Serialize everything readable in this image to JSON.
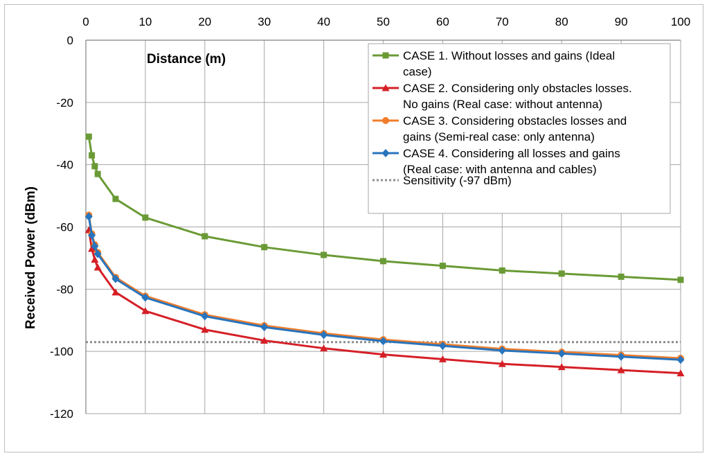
{
  "chart_data": {
    "type": "line",
    "xlabel": "Distance (m)",
    "ylabel": "Received Power (dBm)",
    "xlim": [
      0,
      100
    ],
    "ylim": [
      -120,
      0
    ],
    "xticks": [
      0,
      10,
      20,
      30,
      40,
      50,
      60,
      70,
      80,
      90,
      100
    ],
    "yticks": [
      0,
      -20,
      -40,
      -60,
      -80,
      -100,
      -120
    ],
    "grid": true,
    "legend_position": "top-right",
    "x": [
      0.5,
      1,
      1.5,
      2,
      5,
      10,
      20,
      30,
      40,
      50,
      60,
      70,
      80,
      90,
      100
    ],
    "series": [
      {
        "name": "CASE 1. Without losses and gains (Ideal case)",
        "legend_lines": [
          "CASE 1. Without losses and gains (Ideal",
          "case)"
        ],
        "color": "#6a9a35",
        "marker": "square",
        "values": [
          -31,
          -37,
          -40.5,
          -43,
          -51,
          -57,
          -63,
          -66.5,
          -69,
          -71,
          -72.5,
          -74,
          -75,
          -76,
          -77
        ]
      },
      {
        "name": "CASE 2. Considering only obstacles losses. No gains (Real case: without antenna)",
        "legend_lines": [
          "CASE 2. Considering only obstacles losses.",
          "No gains (Real case: without antenna)"
        ],
        "color": "#d51f26",
        "marker": "triangle",
        "values": [
          -61,
          -67,
          -70.5,
          -73,
          -81,
          -87,
          -93,
          -96.5,
          -99,
          -101,
          -102.5,
          -104,
          -105,
          -106,
          -107
        ]
      },
      {
        "name": "CASE 3. Considering obstacles losses and gains (Semi-real case: only antenna)",
        "legend_lines": [
          "CASE 3. Considering obstacles losses and",
          "gains (Semi-real case: only antenna)"
        ],
        "color": "#f07d2a",
        "marker": "circle",
        "values": [
          -56.2,
          -62.2,
          -65.7,
          -68.2,
          -76.2,
          -82.2,
          -88.2,
          -91.7,
          -94.2,
          -96.2,
          -97.7,
          -99.2,
          -100.2,
          -101.2,
          -102.2
        ]
      },
      {
        "name": "CASE 4. Considering all losses and gains (Real case: with antenna and cables)",
        "legend_lines": [
          "CASE 4. Considering all losses and gains",
          "(Real case: with antenna and cables)"
        ],
        "color": "#2874bd",
        "marker": "diamond",
        "values": [
          -56.7,
          -62.7,
          -66.2,
          -68.7,
          -76.7,
          -82.7,
          -88.7,
          -92.2,
          -94.7,
          -96.7,
          -98.2,
          -99.7,
          -100.7,
          -101.7,
          -102.7
        ]
      }
    ],
    "reference_lines": [
      {
        "name": "Sensitivity (-97 dBm)",
        "value": -97,
        "color": "#8c8c8c",
        "style": "dotted"
      }
    ]
  }
}
